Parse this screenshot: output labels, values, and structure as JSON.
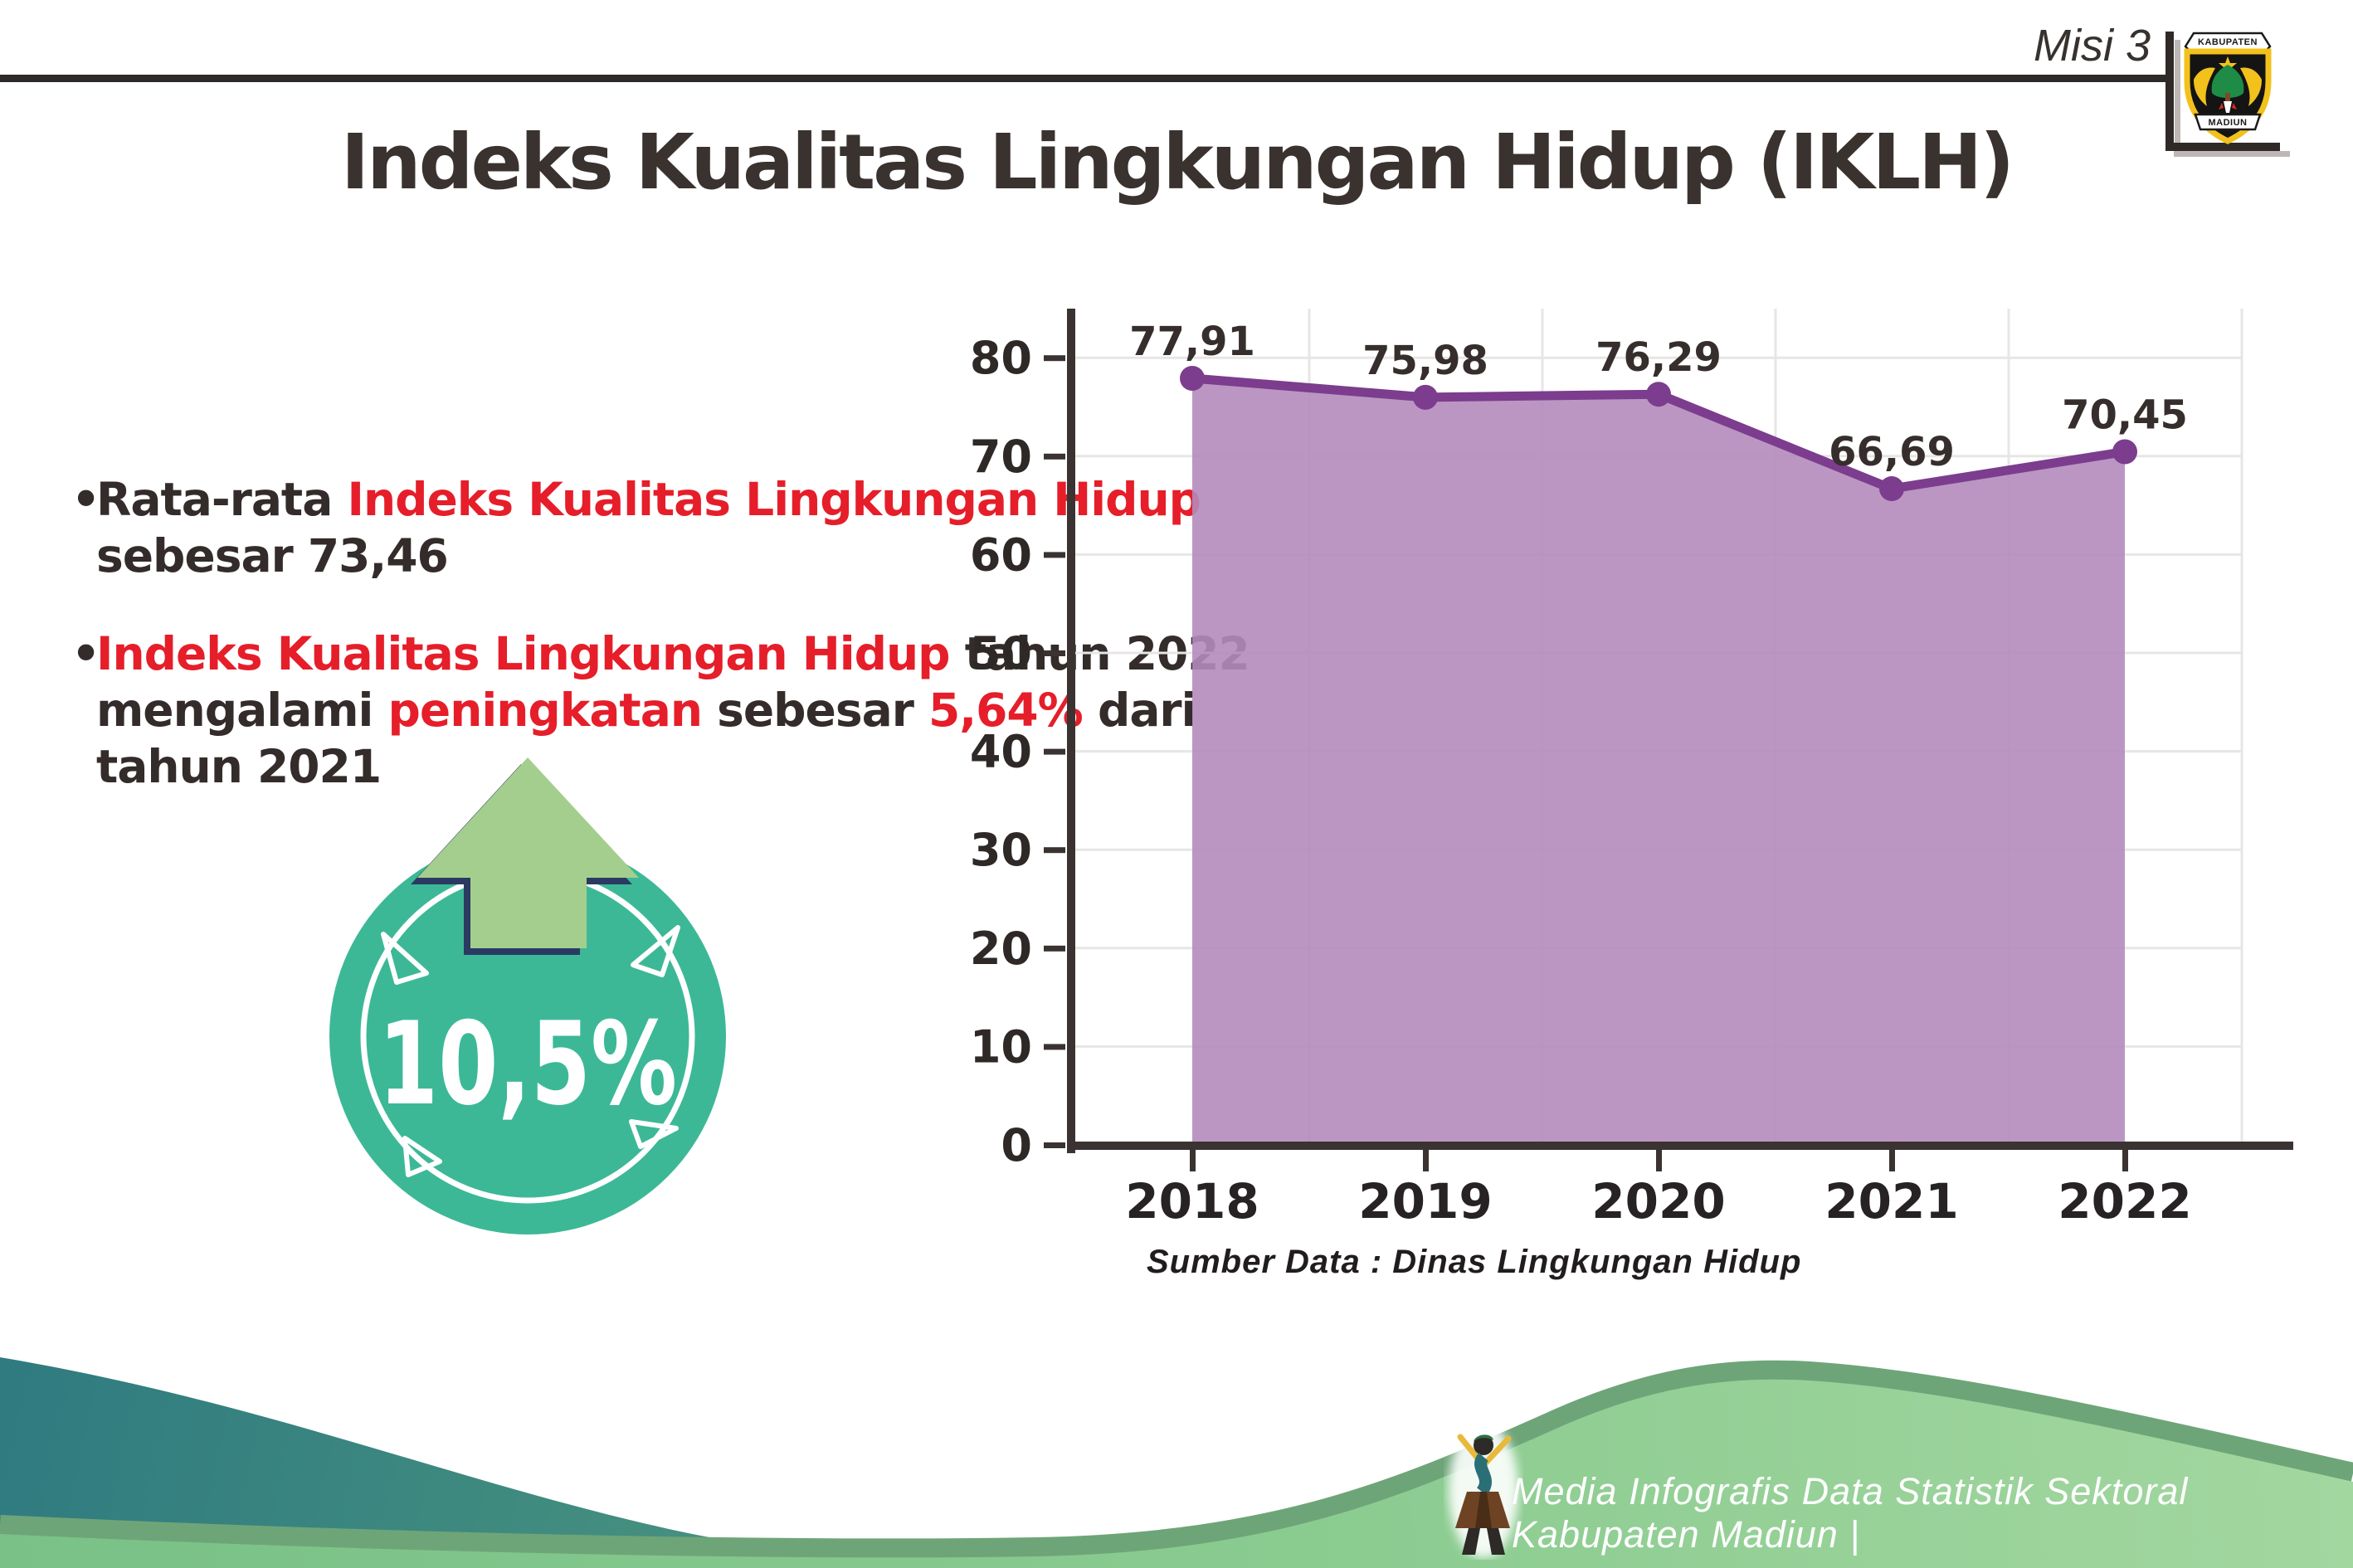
{
  "header": {
    "misi_label": "Misi 3",
    "title": "Indeks Kualitas Lingkungan Hidup (IKLH)"
  },
  "logo": {
    "top_text": "KABUPATEN",
    "bottom_text": "MADIUN"
  },
  "bullets": [
    {
      "lines": [
        [
          {
            "t": "Rata-rata ",
            "c": "dark"
          },
          {
            "t": "Indeks Kualitas Lingkungan Hidup",
            "c": "red"
          }
        ],
        [
          {
            "t": "sebesar 73,46",
            "c": "dark"
          }
        ]
      ]
    },
    {
      "lines": [
        [
          {
            "t": "Indeks Kualitas Lingkungan Hidup",
            "c": "red"
          },
          {
            "t": " tahun 2022",
            "c": "dark"
          }
        ],
        [
          {
            "t": "mengalami ",
            "c": "dark"
          },
          {
            "t": "peningkatan",
            "c": "red"
          },
          {
            "t": " sebesar ",
            "c": "dark"
          },
          {
            "t": "5,64%",
            "c": "red"
          },
          {
            "t": " dari",
            "c": "dark"
          }
        ],
        [
          {
            "t": "tahun 2021",
            "c": "dark"
          }
        ]
      ]
    }
  ],
  "badge": {
    "value": "10,5%",
    "circle_color": "#3cb897",
    "arrow_color": "#a4ce8d",
    "arrow_outline_color": "#2b3a63"
  },
  "chart_data": {
    "type": "area",
    "title": "",
    "categories": [
      "2018",
      "2019",
      "2020",
      "2021",
      "2022"
    ],
    "values": [
      77.91,
      75.98,
      76.29,
      66.69,
      70.45
    ],
    "value_labels": [
      "77,91",
      "75,98",
      "76,29",
      "66,69",
      "70,45"
    ],
    "ylim": [
      0,
      80
    ],
    "ytick_step": 10,
    "grid": true,
    "legend": "none",
    "source": "Sumber Data : Dinas Lingkungan Hidup",
    "colors": {
      "line": "#7c3d8e",
      "fill": "#b48bbd",
      "marker": "#7c3d8e",
      "grid": "#e8e6e5",
      "axis": "#3a3331"
    }
  },
  "footer": {
    "credit": "Media Infografis Data Statistik Sektoral Kabupaten Madiun |",
    "wave_teal": "#2f7a80",
    "wave_green": "#8acb90",
    "wave_edge": "#6ea578"
  }
}
